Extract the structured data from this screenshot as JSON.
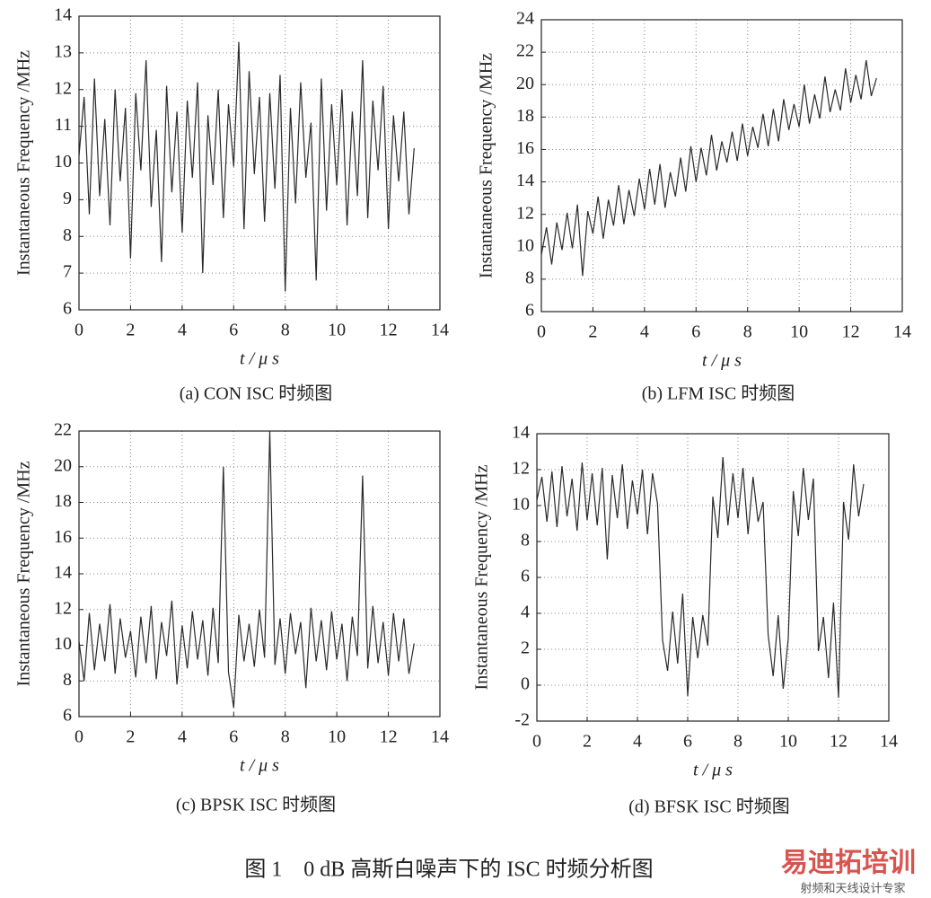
{
  "chart_data": [
    {
      "type": "line",
      "title": "(a) CON ISC 时频图",
      "xlabel": "t / μ s",
      "ylabel": "Instantaneous Frequency /MHz",
      "x": [
        0,
        0.2,
        0.4,
        0.6,
        0.8,
        1,
        1.2,
        1.4,
        1.6,
        1.8,
        2,
        2.2,
        2.4,
        2.6,
        2.8,
        3,
        3.2,
        3.4,
        3.6,
        3.8,
        4,
        4.2,
        4.4,
        4.6,
        4.8,
        5,
        5.2,
        5.4,
        5.6,
        5.8,
        6,
        6.2,
        6.4,
        6.6,
        6.8,
        7,
        7.2,
        7.4,
        7.6,
        7.8,
        8,
        8.2,
        8.4,
        8.6,
        8.8,
        9,
        9.2,
        9.4,
        9.6,
        9.8,
        10,
        10.2,
        10.4,
        10.6,
        10.8,
        11,
        11.2,
        11.4,
        11.6,
        11.8,
        12,
        12.2,
        12.4,
        12.6,
        12.8,
        13
      ],
      "series": [
        {
          "color": "#2a2a2a",
          "values": [
            10.2,
            11.8,
            8.6,
            12.3,
            9.1,
            11.2,
            8.3,
            12,
            9.5,
            11.5,
            7.4,
            11.9,
            9.8,
            12.8,
            8.8,
            10.9,
            7.3,
            12.1,
            9.2,
            11.4,
            8.1,
            11.7,
            9.6,
            12.2,
            7,
            11.3,
            9.4,
            12,
            8.5,
            11.6,
            9.9,
            13.3,
            8.2,
            12.5,
            9.7,
            11.8,
            8.4,
            11.9,
            9.3,
            12.4,
            6.5,
            11.5,
            8.9,
            12.2,
            9.6,
            11.1,
            6.8,
            12.3,
            8.7,
            11.6,
            9.4,
            12,
            8.3,
            11.4,
            9.1,
            12.8,
            8.5,
            11.7,
            9.8,
            12.1,
            8.2,
            11.3,
            9.5,
            11.4,
            8.6,
            10.4
          ]
        }
      ],
      "xlim": [
        0,
        14
      ],
      "xticks": [
        0,
        2,
        4,
        6,
        8,
        10,
        12,
        14
      ],
      "ylim": [
        6,
        14
      ],
      "yticks": [
        6,
        7,
        8,
        9,
        10,
        11,
        12,
        13,
        14
      ],
      "grid": true
    },
    {
      "type": "line",
      "title": "(b) LFM ISC 时频图",
      "xlabel": "t / μ s",
      "ylabel": "Instantaneous Frequency /MHz",
      "x": [
        0,
        0.2,
        0.4,
        0.6,
        0.8,
        1,
        1.2,
        1.4,
        1.6,
        1.8,
        2,
        2.2,
        2.4,
        2.6,
        2.8,
        3,
        3.2,
        3.4,
        3.6,
        3.8,
        4,
        4.2,
        4.4,
        4.6,
        4.8,
        5,
        5.2,
        5.4,
        5.6,
        5.8,
        6,
        6.2,
        6.4,
        6.6,
        6.8,
        7,
        7.2,
        7.4,
        7.6,
        7.8,
        8,
        8.2,
        8.4,
        8.6,
        8.8,
        9,
        9.2,
        9.4,
        9.6,
        9.8,
        10,
        10.2,
        10.4,
        10.6,
        10.8,
        11,
        11.2,
        11.4,
        11.6,
        11.8,
        12,
        12.2,
        12.4,
        12.6,
        12.8,
        13
      ],
      "series": [
        {
          "color": "#2a2a2a",
          "values": [
            9.5,
            11.2,
            8.9,
            11.5,
            9.8,
            12.1,
            9.9,
            12.6,
            8.2,
            12.2,
            10.8,
            13.1,
            10.5,
            12.9,
            11.3,
            13.8,
            11.4,
            13.5,
            11.9,
            14.2,
            12.3,
            14.8,
            12.6,
            15.1,
            12.4,
            14.6,
            13.1,
            15.5,
            13.4,
            16.2,
            14,
            16.1,
            14.4,
            16.9,
            14.7,
            16.5,
            15.2,
            17.1,
            15.3,
            17.6,
            15.6,
            17.4,
            16.1,
            18.2,
            16.2,
            18.5,
            16.5,
            19.1,
            17.2,
            18.8,
            17.4,
            20,
            17.6,
            19.4,
            17.9,
            20.5,
            18.3,
            19.7,
            18.4,
            21,
            18.9,
            20.6,
            19.1,
            21.5,
            19.3,
            20.4
          ]
        }
      ],
      "xlim": [
        0,
        14
      ],
      "xticks": [
        0,
        2,
        4,
        6,
        8,
        10,
        12,
        14
      ],
      "ylim": [
        6,
        24
      ],
      "yticks": [
        6,
        8,
        10,
        12,
        14,
        16,
        18,
        20,
        22,
        24
      ],
      "grid": true
    },
    {
      "type": "line",
      "title": "(c) BPSK ISC 时频图",
      "xlabel": "t / μ s",
      "ylabel": "Instantaneous Frequency /MHz",
      "x": [
        0,
        0.2,
        0.4,
        0.6,
        0.8,
        1,
        1.2,
        1.4,
        1.6,
        1.8,
        2,
        2.2,
        2.4,
        2.6,
        2.8,
        3,
        3.2,
        3.4,
        3.6,
        3.8,
        4,
        4.2,
        4.4,
        4.6,
        4.8,
        5,
        5.2,
        5.4,
        5.6,
        5.8,
        6,
        6.2,
        6.4,
        6.6,
        6.8,
        7,
        7.2,
        7.4,
        7.6,
        7.8,
        8,
        8.2,
        8.4,
        8.6,
        8.8,
        9,
        9.2,
        9.4,
        9.6,
        9.8,
        10,
        10.2,
        10.4,
        10.6,
        10.8,
        11,
        11.2,
        11.4,
        11.6,
        11.8,
        12,
        12.2,
        12.4,
        12.6,
        12.8,
        13
      ],
      "series": [
        {
          "color": "#2a2a2a",
          "values": [
            10.2,
            8,
            11.8,
            8.6,
            11.2,
            9.1,
            12.3,
            8.4,
            11.5,
            9.3,
            10.8,
            8.2,
            11.6,
            9,
            12.2,
            8.1,
            11.3,
            9.4,
            12.5,
            7.8,
            11.1,
            8.7,
            11.9,
            9.2,
            11.4,
            8.3,
            12.1,
            9,
            20,
            8.5,
            6.5,
            11.7,
            9.1,
            11.2,
            8.8,
            12,
            9.3,
            22,
            8.9,
            11.5,
            8.4,
            11.8,
            9.5,
            11.3,
            7.6,
            12.1,
            9.1,
            11.4,
            8.6,
            11.9,
            9.2,
            11.2,
            8,
            11.6,
            9.4,
            19.5,
            8.7,
            12.2,
            9,
            11.3,
            8.3,
            11.8,
            9.1,
            11.5,
            8.4,
            10.1
          ]
        }
      ],
      "xlim": [
        0,
        14
      ],
      "xticks": [
        0,
        2,
        4,
        6,
        8,
        10,
        12,
        14
      ],
      "ylim": [
        6,
        22
      ],
      "yticks": [
        6,
        8,
        10,
        12,
        14,
        16,
        18,
        20,
        22
      ],
      "grid": true
    },
    {
      "type": "line",
      "title": "(d) BFSK ISC 时频图",
      "xlabel": "t / μ s",
      "ylabel": "Instantaneous Frequency /MHz",
      "x": [
        0,
        0.2,
        0.4,
        0.6,
        0.8,
        1,
        1.2,
        1.4,
        1.6,
        1.8,
        2,
        2.2,
        2.4,
        2.6,
        2.8,
        3,
        3.2,
        3.4,
        3.6,
        3.8,
        4,
        4.2,
        4.4,
        4.6,
        4.8,
        5,
        5.2,
        5.4,
        5.6,
        5.8,
        6,
        6.2,
        6.4,
        6.6,
        6.8,
        7,
        7.2,
        7.4,
        7.6,
        7.8,
        8,
        8.2,
        8.4,
        8.6,
        8.8,
        9,
        9.2,
        9.4,
        9.6,
        9.8,
        10,
        10.2,
        10.4,
        10.6,
        10.8,
        11,
        11.2,
        11.4,
        11.6,
        11.8,
        12,
        12.2,
        12.4,
        12.6,
        12.8,
        13
      ],
      "series": [
        {
          "color": "#2a2a2a",
          "values": [
            10.3,
            11.6,
            9.1,
            11.9,
            8.8,
            12.2,
            9.4,
            11.5,
            8.6,
            12.4,
            9.2,
            11.8,
            8.9,
            12.1,
            7,
            11.7,
            9.3,
            12.3,
            8.7,
            11.4,
            9.5,
            12,
            8.4,
            11.8,
            10.1,
            2.5,
            0.8,
            4.1,
            1.2,
            5.1,
            -0.6,
            3.8,
            1.5,
            3.9,
            2.2,
            10.5,
            8.2,
            12.7,
            8.9,
            11.8,
            9.3,
            12.1,
            8.4,
            11.6,
            9.1,
            10.2,
            2.8,
            0.5,
            3.9,
            -0.2,
            2.6,
            10.8,
            8.3,
            12.1,
            9.2,
            11.5,
            1.9,
            3.8,
            0.4,
            4.6,
            -0.7,
            10.2,
            8.1,
            12.3,
            9.4,
            11.2
          ]
        }
      ],
      "xlim": [
        0,
        14
      ],
      "xticks": [
        0,
        2,
        4,
        6,
        8,
        10,
        12,
        14
      ],
      "ylim": [
        -2,
        14
      ],
      "yticks": [
        -2,
        0,
        2,
        4,
        6,
        8,
        10,
        12,
        14
      ],
      "grid": true
    }
  ],
  "figure_caption": "图 1　0 dB 高斯白噪声下的 ISC 时频分析图",
  "watermark": {
    "brand": "易迪拓培训",
    "slogan": "射频和天线设计专家"
  }
}
